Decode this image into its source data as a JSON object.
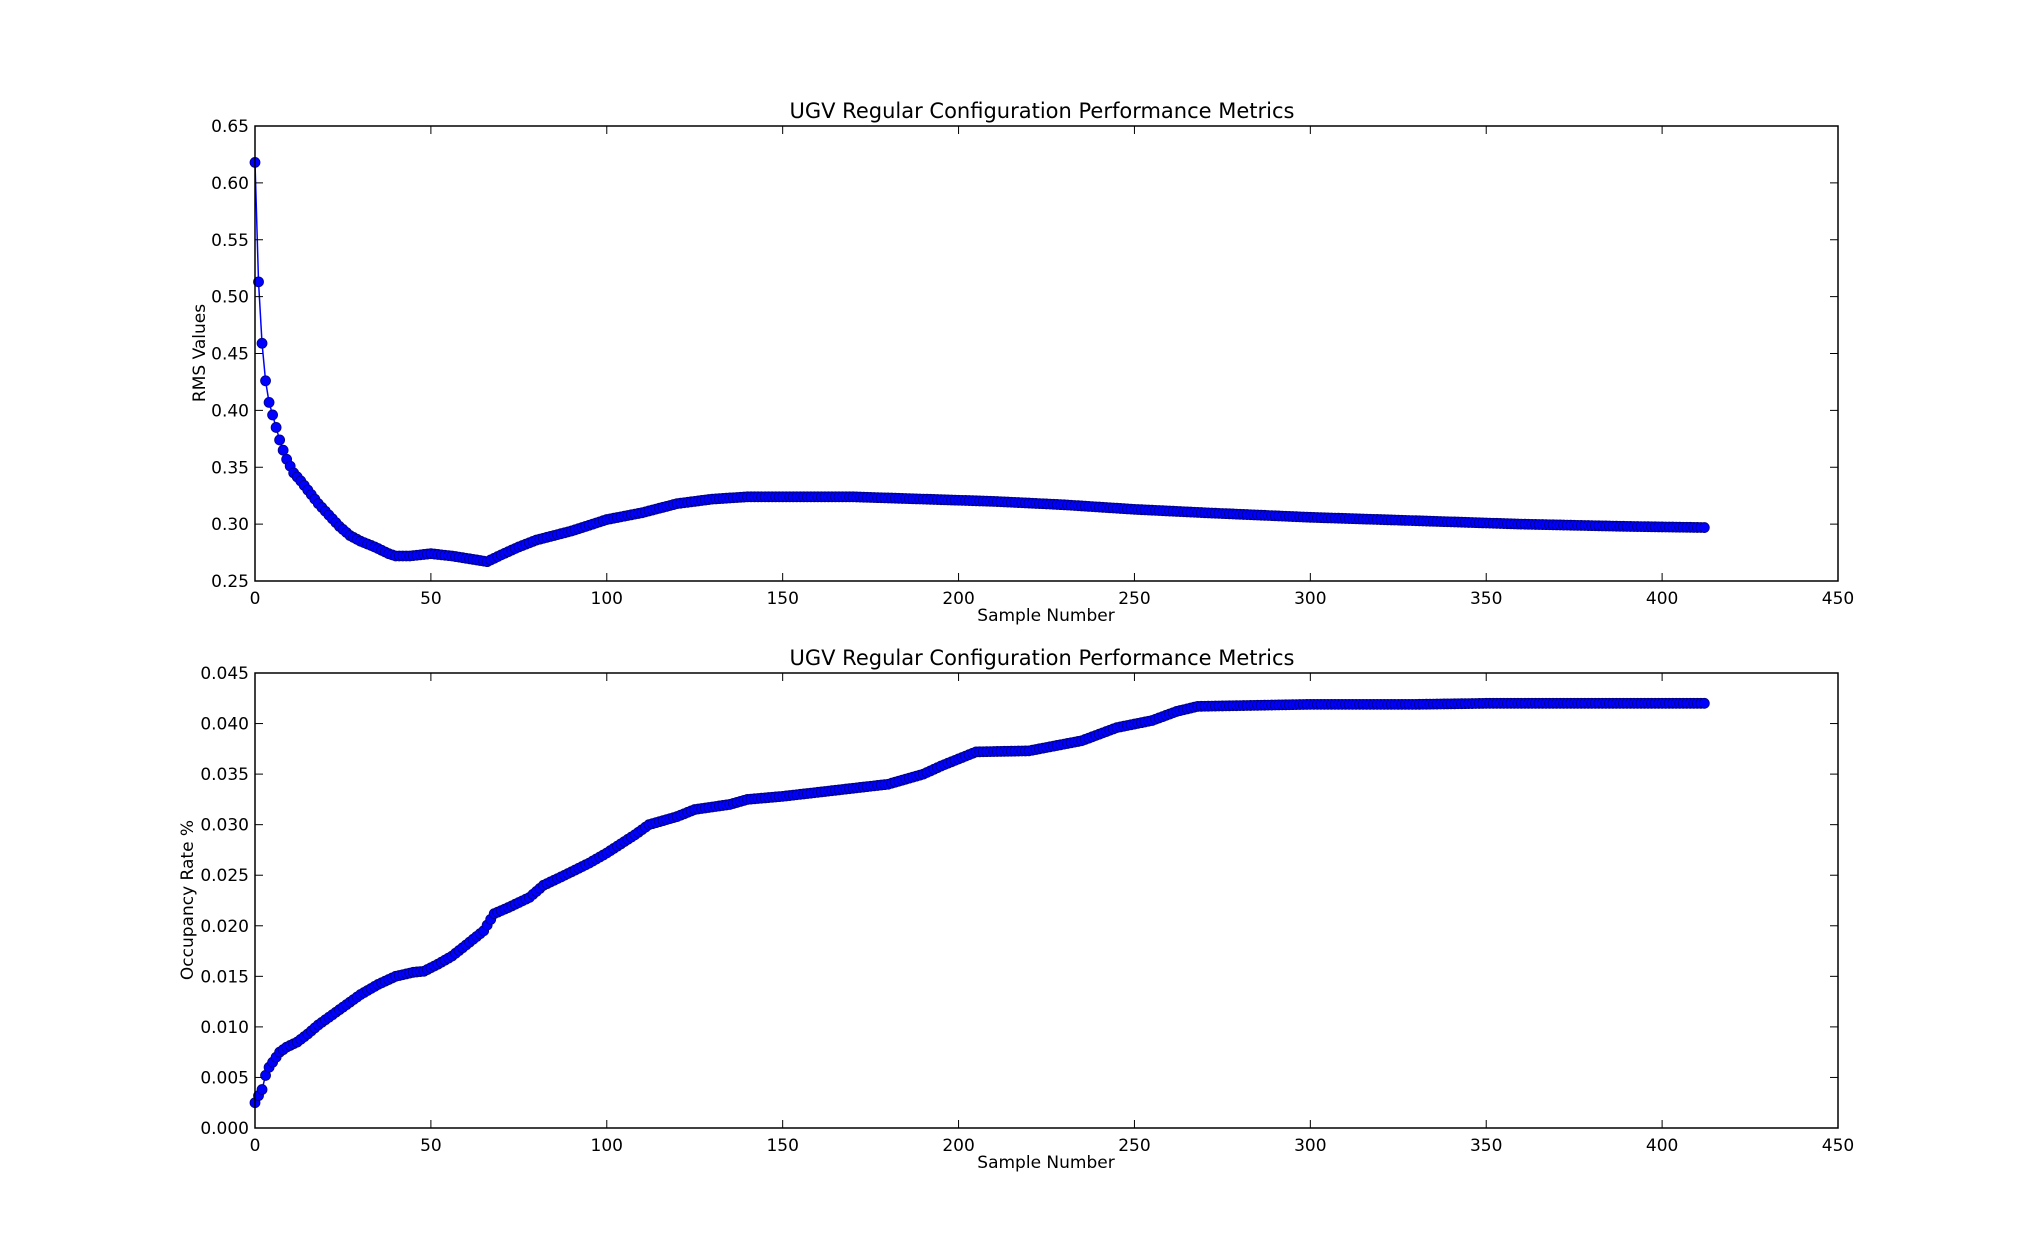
{
  "chart_data": [
    {
      "type": "line",
      "title": "UGV Regular Configuration Performance  Metrics",
      "xlabel": "Sample Number",
      "ylabel": "RMS Values",
      "xlim": [
        0,
        450
      ],
      "ylim": [
        0.25,
        0.65
      ],
      "xticks": [
        "0",
        "50",
        "100",
        "150",
        "200",
        "250",
        "300",
        "350",
        "400",
        "450"
      ],
      "yticks": [
        "0.25",
        "0.30",
        "0.35",
        "0.40",
        "0.45",
        "0.50",
        "0.55",
        "0.60",
        "0.65"
      ],
      "grid": false,
      "marker": "circle",
      "color": "#0000ff",
      "x_range": [
        0,
        412
      ],
      "keypoints": [
        [
          0,
          0.618
        ],
        [
          1,
          0.513
        ],
        [
          2,
          0.459
        ],
        [
          3,
          0.426
        ],
        [
          4,
          0.407
        ],
        [
          5,
          0.396
        ],
        [
          6,
          0.385
        ],
        [
          7,
          0.374
        ],
        [
          8,
          0.365
        ],
        [
          9,
          0.357
        ],
        [
          10,
          0.351
        ],
        [
          11,
          0.345
        ],
        [
          13,
          0.338
        ],
        [
          15,
          0.33
        ],
        [
          18,
          0.318
        ],
        [
          21,
          0.308
        ],
        [
          24,
          0.298
        ],
        [
          27,
          0.29
        ],
        [
          30,
          0.285
        ],
        [
          34,
          0.28
        ],
        [
          38,
          0.274
        ],
        [
          40,
          0.272
        ],
        [
          44,
          0.272
        ],
        [
          50,
          0.274
        ],
        [
          56,
          0.272
        ],
        [
          62,
          0.269
        ],
        [
          66,
          0.267
        ],
        [
          70,
          0.273
        ],
        [
          75,
          0.28
        ],
        [
          80,
          0.286
        ],
        [
          90,
          0.294
        ],
        [
          100,
          0.304
        ],
        [
          110,
          0.31
        ],
        [
          120,
          0.318
        ],
        [
          130,
          0.322
        ],
        [
          140,
          0.324
        ],
        [
          150,
          0.324
        ],
        [
          170,
          0.324
        ],
        [
          190,
          0.322
        ],
        [
          210,
          0.32
        ],
        [
          230,
          0.317
        ],
        [
          250,
          0.313
        ],
        [
          270,
          0.31
        ],
        [
          300,
          0.306
        ],
        [
          330,
          0.303
        ],
        [
          360,
          0.3
        ],
        [
          390,
          0.298
        ],
        [
          412,
          0.297
        ]
      ]
    },
    {
      "type": "line",
      "title": "UGV Regular Configuration Performance  Metrics",
      "xlabel": "Sample Number",
      "ylabel": "Occupancy Rate  %",
      "xlim": [
        0,
        450
      ],
      "ylim": [
        0.0,
        0.045
      ],
      "xticks": [
        "0",
        "50",
        "100",
        "150",
        "200",
        "250",
        "300",
        "350",
        "400",
        "450"
      ],
      "yticks": [
        "0.000",
        "0.005",
        "0.010",
        "0.015",
        "0.020",
        "0.025",
        "0.030",
        "0.035",
        "0.040",
        "0.045"
      ],
      "grid": false,
      "marker": "circle",
      "color": "#0000ff",
      "x_range": [
        0,
        412
      ],
      "keypoints": [
        [
          0,
          0.0025
        ],
        [
          1,
          0.0032
        ],
        [
          2,
          0.0038
        ],
        [
          3,
          0.0052
        ],
        [
          4,
          0.006
        ],
        [
          5,
          0.0065
        ],
        [
          7,
          0.0075
        ],
        [
          9,
          0.008
        ],
        [
          12,
          0.0085
        ],
        [
          15,
          0.0093
        ],
        [
          18,
          0.0102
        ],
        [
          22,
          0.0112
        ],
        [
          26,
          0.0122
        ],
        [
          30,
          0.0132
        ],
        [
          35,
          0.0142
        ],
        [
          40,
          0.015
        ],
        [
          45,
          0.0154
        ],
        [
          48,
          0.0155
        ],
        [
          52,
          0.0162
        ],
        [
          56,
          0.017
        ],
        [
          60,
          0.0181
        ],
        [
          65,
          0.0195
        ],
        [
          68,
          0.0212
        ],
        [
          72,
          0.0218
        ],
        [
          78,
          0.0228
        ],
        [
          82,
          0.024
        ],
        [
          88,
          0.025
        ],
        [
          95,
          0.0262
        ],
        [
          100,
          0.0272
        ],
        [
          108,
          0.029
        ],
        [
          112,
          0.03
        ],
        [
          120,
          0.0308
        ],
        [
          125,
          0.0315
        ],
        [
          135,
          0.032
        ],
        [
          140,
          0.0325
        ],
        [
          150,
          0.0328
        ],
        [
          160,
          0.0332
        ],
        [
          170,
          0.0336
        ],
        [
          180,
          0.034
        ],
        [
          190,
          0.035
        ],
        [
          195,
          0.0358
        ],
        [
          200,
          0.0365
        ],
        [
          205,
          0.0372
        ],
        [
          220,
          0.0373
        ],
        [
          235,
          0.0383
        ],
        [
          245,
          0.0396
        ],
        [
          255,
          0.0403
        ],
        [
          262,
          0.0412
        ],
        [
          268,
          0.0417
        ],
        [
          300,
          0.0419
        ],
        [
          330,
          0.0419
        ],
        [
          350,
          0.042
        ],
        [
          412,
          0.042
        ]
      ]
    }
  ]
}
